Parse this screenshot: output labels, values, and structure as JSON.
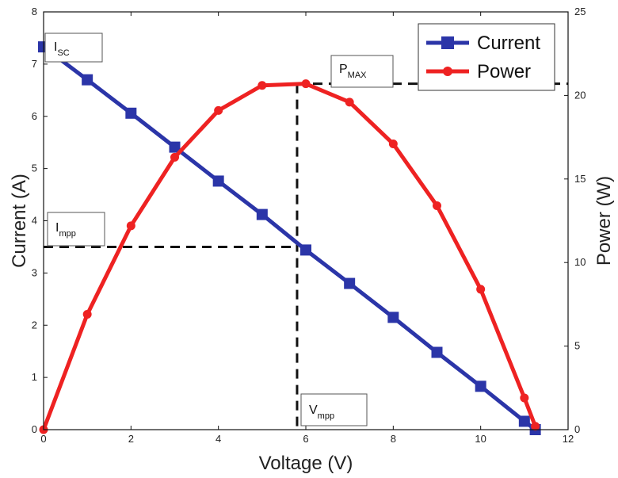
{
  "chart_data": {
    "type": "line",
    "xlabel": "Voltage (V)",
    "ylabel": "Current (A)",
    "y2label": "Power (W)",
    "xlim": [
      0,
      12
    ],
    "ylim": [
      0,
      8
    ],
    "y2lim": [
      0,
      25
    ],
    "xticks": [
      "0",
      "2",
      "4",
      "6",
      "8",
      "10",
      "12"
    ],
    "yticks": [
      "0",
      "1",
      "2",
      "3",
      "4",
      "5",
      "6",
      "7",
      "8"
    ],
    "y2ticks": [
      "0",
      "5",
      "10",
      "15",
      "20",
      "25"
    ],
    "grid": false,
    "legend_position": "top-right",
    "series": [
      {
        "name": "Current",
        "axis": "left",
        "color": "#2b35a8",
        "marker": "square",
        "x": [
          0,
          1,
          2,
          3,
          4,
          5,
          6,
          7,
          8,
          9,
          10,
          11,
          11.25
        ],
        "y": [
          7.33,
          6.7,
          6.06,
          5.41,
          4.76,
          4.12,
          3.44,
          2.8,
          2.15,
          1.48,
          0.83,
          0.16,
          0.0
        ]
      },
      {
        "name": "Power",
        "axis": "right",
        "color": "#ee2222",
        "marker": "circle",
        "x": [
          0,
          1,
          2,
          3,
          4,
          5,
          6,
          7,
          8,
          9,
          10,
          11,
          11.25
        ],
        "y": [
          0,
          6.9,
          12.2,
          16.3,
          19.1,
          20.6,
          20.7,
          19.6,
          17.1,
          13.4,
          8.4,
          1.9,
          0.2
        ]
      }
    ],
    "annotations": {
      "isc": {
        "main": "I",
        "sub": "SC"
      },
      "pmax": {
        "main": "P",
        "sub": "MAX"
      },
      "impp": {
        "main": "I",
        "sub": "mpp"
      },
      "vmpp": {
        "main": "V",
        "sub": "mpp"
      }
    },
    "mpp": {
      "v": 5.8,
      "i": 3.5,
      "p": 20.7
    }
  }
}
